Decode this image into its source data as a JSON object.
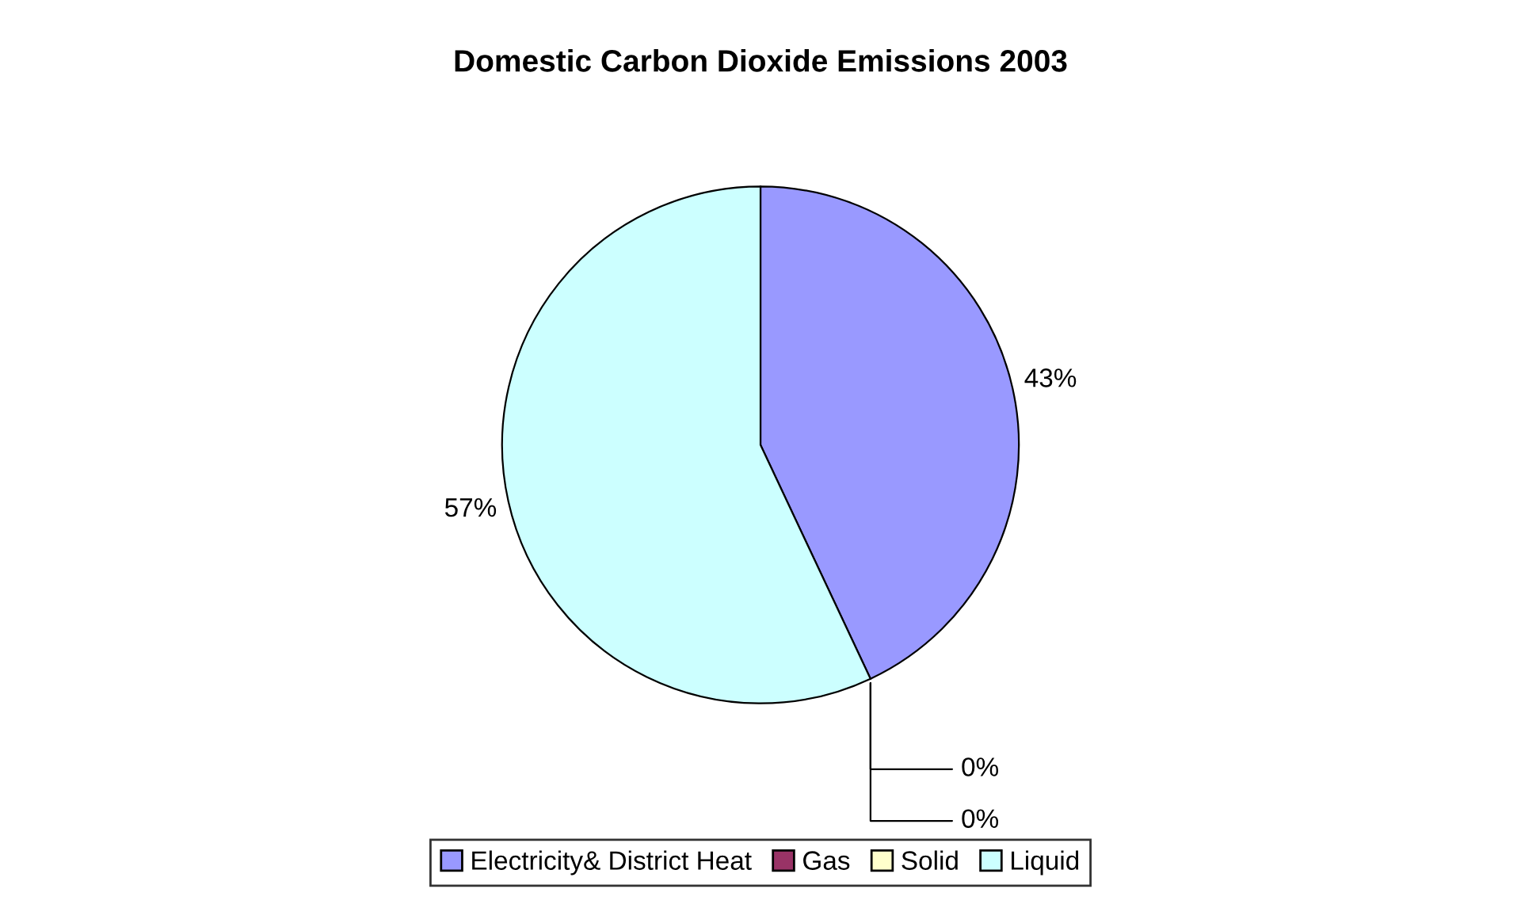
{
  "chart_data": {
    "type": "pie",
    "title": "Domestic Carbon Dioxide Emissions 2003",
    "categories": [
      "Electricity& District Heat",
      "Gas",
      "Solid",
      "Liquid"
    ],
    "values": [
      43,
      0,
      0,
      57
    ],
    "colors": [
      "#9999ff",
      "#993366",
      "#ffffcc",
      "#ccffff"
    ],
    "value_labels": [
      "43%",
      "0%",
      "0%",
      "57%"
    ],
    "legend": "bottom"
  }
}
